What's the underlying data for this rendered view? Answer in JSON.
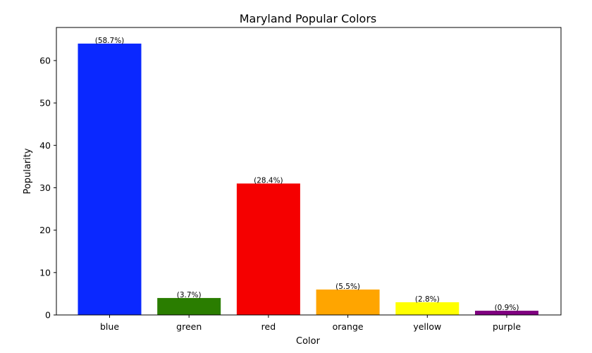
{
  "chart_data": {
    "type": "bar",
    "title": "Maryland Popular Colors",
    "xlabel": "Color",
    "ylabel": "Popularity",
    "categories": [
      "blue",
      "green",
      "red",
      "orange",
      "yellow",
      "purple"
    ],
    "values": [
      64,
      4,
      31,
      6,
      3,
      1
    ],
    "data_labels": [
      "(58.7%)",
      "(3.7%)",
      "(28.4%)",
      "(5.5%)",
      "(2.8%)",
      "(0.9%)"
    ],
    "colors": [
      "#0a28ff",
      "#2a7d00",
      "#f50000",
      "#ffa500",
      "#ffff00",
      "#800080"
    ],
    "ylim": [
      0,
      67.8
    ],
    "yticks": [
      0,
      10,
      20,
      30,
      40,
      50,
      60
    ],
    "grid": false,
    "legend": "none"
  }
}
